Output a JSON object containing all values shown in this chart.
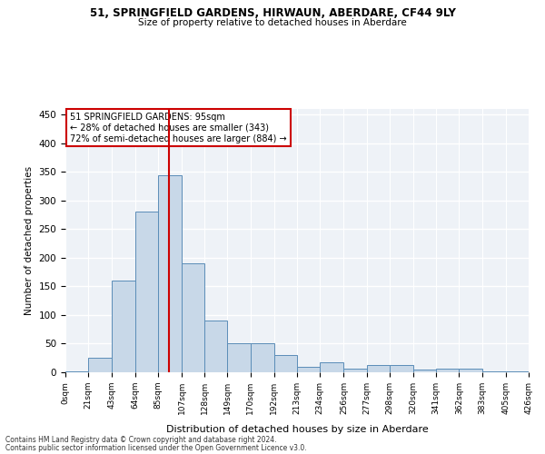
{
  "title1": "51, SPRINGFIELD GARDENS, HIRWAUN, ABERDARE, CF44 9LY",
  "title2": "Size of property relative to detached houses in Aberdare",
  "xlabel": "Distribution of detached houses by size in Aberdare",
  "ylabel": "Number of detached properties",
  "footer1": "Contains HM Land Registry data © Crown copyright and database right 2024.",
  "footer2": "Contains public sector information licensed under the Open Government Licence v3.0.",
  "annotation_line1": "51 SPRINGFIELD GARDENS: 95sqm",
  "annotation_line2": "← 28% of detached houses are smaller (343)",
  "annotation_line3": "72% of semi-detached houses are larger (884) →",
  "property_size": 95,
  "bin_edges": [
    0,
    21,
    43,
    64,
    85,
    107,
    128,
    149,
    170,
    192,
    213,
    234,
    256,
    277,
    298,
    320,
    341,
    362,
    383,
    405,
    426
  ],
  "bar_heights": [
    2,
    25,
    160,
    280,
    345,
    190,
    90,
    50,
    50,
    30,
    10,
    18,
    7,
    12,
    12,
    4,
    6,
    6,
    1,
    2
  ],
  "bar_color": "#c8d8e8",
  "bar_edge_color": "#5b8db8",
  "vline_color": "#cc0000",
  "background_color": "#eef2f7",
  "grid_color": "#ffffff",
  "ylim": [
    0,
    460
  ],
  "yticks": [
    0,
    50,
    100,
    150,
    200,
    250,
    300,
    350,
    400,
    450
  ]
}
